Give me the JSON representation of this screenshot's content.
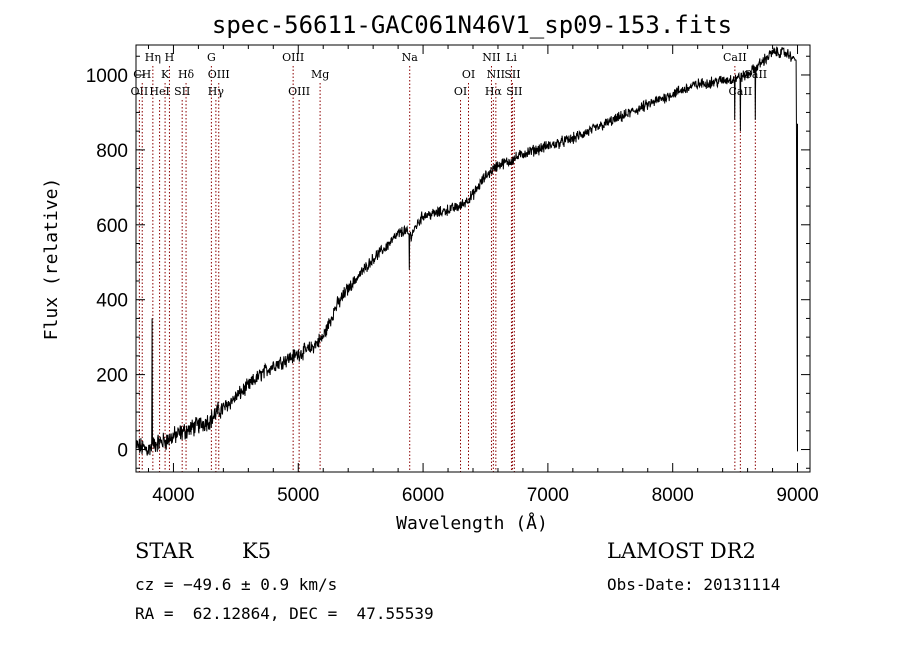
{
  "chart_data": {
    "type": "line",
    "title": "spec-56611-GAC061N46V1_sp09-153.fits",
    "xlabel": "Wavelength (Å)",
    "ylabel": "Flux (relative)",
    "xlim": [
      3700,
      9100
    ],
    "ylim": [
      -60,
      1080
    ],
    "xticks": [
      4000,
      5000,
      6000,
      7000,
      8000,
      9000
    ],
    "yticks": [
      0,
      200,
      400,
      600,
      800,
      1000
    ],
    "xtick_labels": [
      "4000",
      "5000",
      "6000",
      "7000",
      "8000",
      "9000"
    ],
    "ytick_labels": [
      "0",
      "200",
      "400",
      "600",
      "800",
      "1000"
    ],
    "line_color": "#000000",
    "marker_color": "#8b0000",
    "spectrum_anchors": {
      "x": [
        3700,
        3750,
        3800,
        3850,
        3900,
        3950,
        4000,
        4100,
        4200,
        4300,
        4350,
        4400,
        4500,
        4600,
        4700,
        4800,
        4900,
        5000,
        5100,
        5200,
        5300,
        5400,
        5500,
        5600,
        5700,
        5800,
        5850,
        5900,
        5950,
        6000,
        6100,
        6200,
        6300,
        6400,
        6500,
        6600,
        6700,
        6800,
        6900,
        7000,
        7200,
        7400,
        7600,
        7800,
        8000,
        8200,
        8400,
        8500,
        8600,
        8700,
        8800,
        8900,
        8990,
        9000
      ],
      "y": [
        10,
        5,
        0,
        15,
        20,
        25,
        35,
        50,
        65,
        80,
        100,
        110,
        140,
        170,
        200,
        225,
        240,
        255,
        270,
        300,
        380,
        430,
        470,
        510,
        540,
        575,
        585,
        570,
        600,
        625,
        630,
        640,
        650,
        680,
        730,
        760,
        770,
        790,
        800,
        810,
        830,
        860,
        890,
        920,
        950,
        975,
        985,
        990,
        1000,
        1030,
        1060,
        1060,
        1040,
        -5
      ]
    },
    "spikes": [
      {
        "x": 3830,
        "y": 350
      },
      {
        "x": 5890,
        "y": 480
      },
      {
        "x": 8498,
        "y": 880
      },
      {
        "x": 8542,
        "y": 850
      },
      {
        "x": 8662,
        "y": 880
      }
    ],
    "line_markers": [
      {
        "x": 3727,
        "label": "OII",
        "row": 3
      },
      {
        "x": 3750,
        "label": "CH",
        "row": 2
      },
      {
        "x": 3835,
        "label": "Hη",
        "row": 1
      },
      {
        "x": 3889,
        "label": "HeI",
        "row": 3
      },
      {
        "x": 3933,
        "label": "K",
        "row": 2
      },
      {
        "x": 3968,
        "label": "H",
        "row": 1
      },
      {
        "x": 4070,
        "label": "SII",
        "row": 3
      },
      {
        "x": 4101,
        "label": "Hδ",
        "row": 2
      },
      {
        "x": 4304,
        "label": "G",
        "row": 1
      },
      {
        "x": 4340,
        "label": "Hγ",
        "row": 3
      },
      {
        "x": 4363,
        "label": "OIII",
        "row": 2
      },
      {
        "x": 4959,
        "label": "OIII",
        "row": 1
      },
      {
        "x": 5007,
        "label": "OIII",
        "row": 3
      },
      {
        "x": 5175,
        "label": "Mg",
        "row": 2
      },
      {
        "x": 5893,
        "label": "Na",
        "row": 1
      },
      {
        "x": 6300,
        "label": "OI",
        "row": 3
      },
      {
        "x": 6364,
        "label": "OI",
        "row": 2
      },
      {
        "x": 6548,
        "label": "NII",
        "row": 1
      },
      {
        "x": 6563,
        "label": "Hα",
        "row": 3
      },
      {
        "x": 6583,
        "label": "NII",
        "row": 2
      },
      {
        "x": 6708,
        "label": "Li",
        "row": 1
      },
      {
        "x": 6716,
        "label": "SII",
        "row": 2
      },
      {
        "x": 6731,
        "label": "SII",
        "row": 3
      },
      {
        "x": 8498,
        "label": "CaII",
        "row": 1
      },
      {
        "x": 8542,
        "label": "CaII",
        "row": 3
      },
      {
        "x": 8662,
        "label": "CaII",
        "row": 2
      }
    ]
  },
  "info": {
    "object_class": "STAR",
    "subclass": "K5",
    "survey": "LAMOST DR2",
    "redshift": "cz = −49.6 ± 0.9 km/s",
    "obs_date": "Obs-Date: 20131114",
    "coords": "RA =  62.12864, DEC =  47.55539"
  }
}
